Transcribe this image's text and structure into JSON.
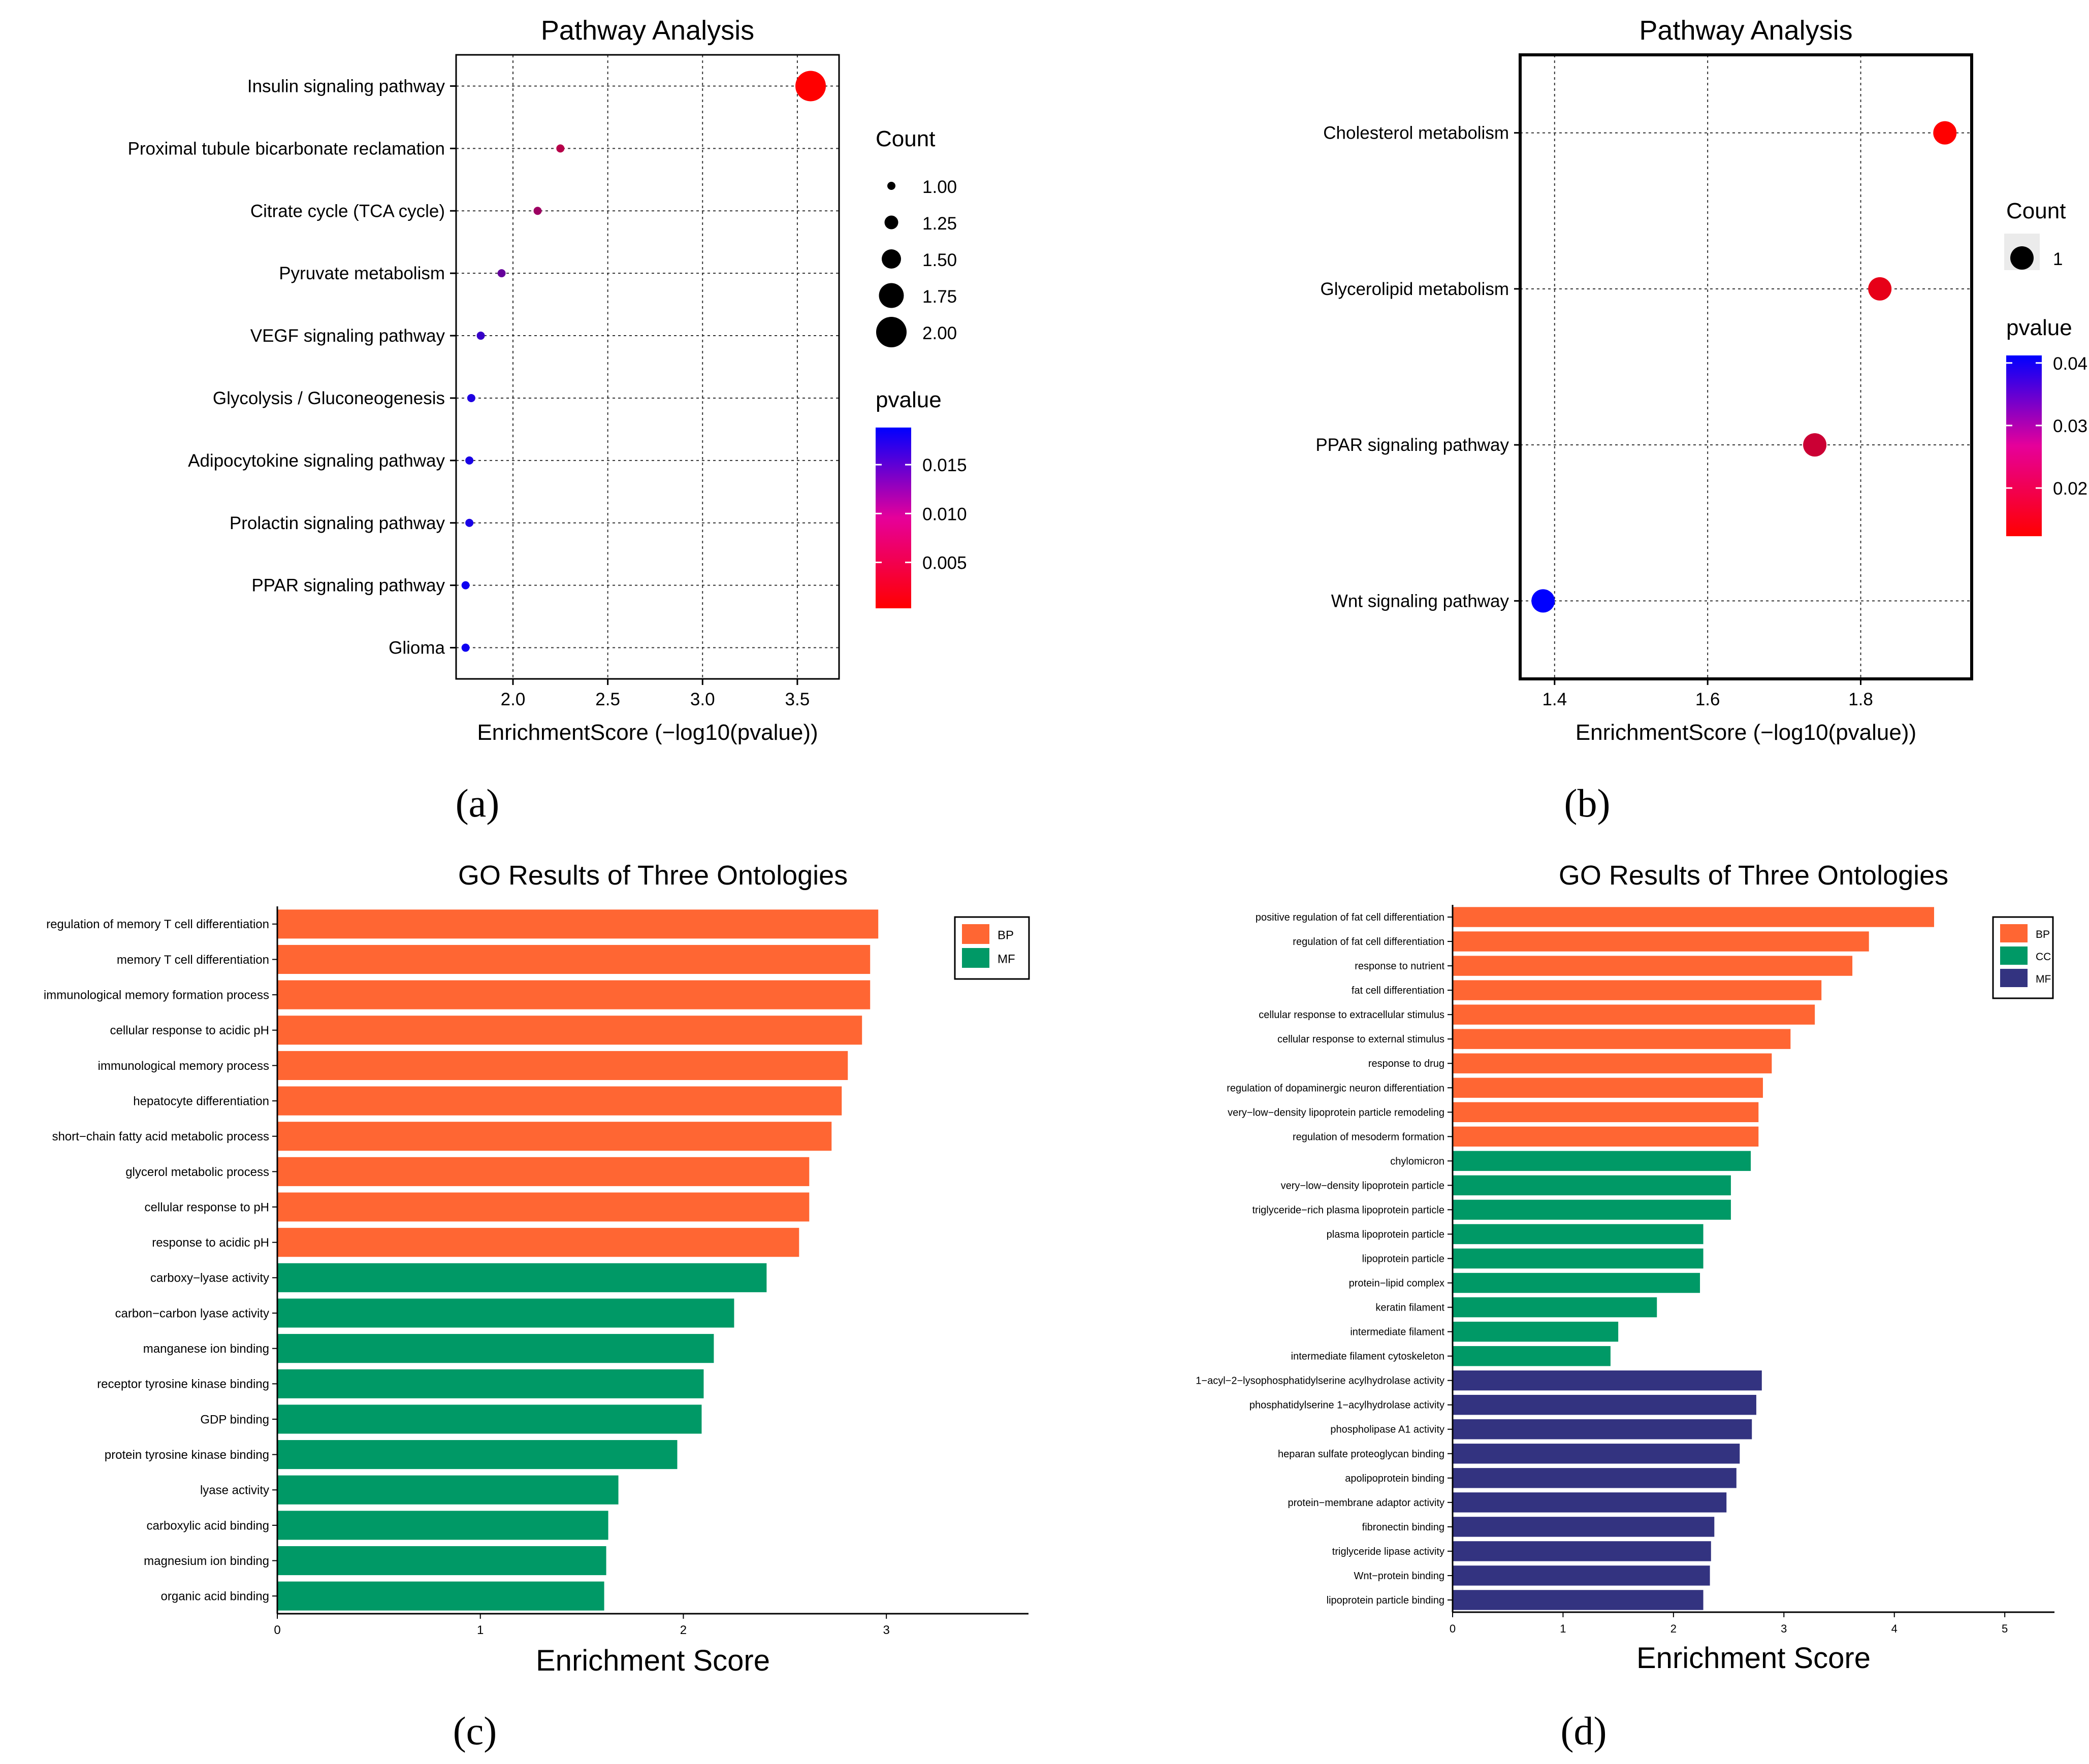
{
  "panel_labels": [
    "(a)",
    "(b)",
    "(c)",
    "(d)"
  ],
  "chart_data": [
    {
      "type": "scatter",
      "panel": "a",
      "title": "Pathway Analysis",
      "xlabel": "EnrichmentScore (−log10(pvalue))",
      "ylabel": "",
      "xlim": [
        1.7,
        3.72
      ],
      "xticks": [
        2.0,
        2.5,
        3.0,
        3.5
      ],
      "xtick_labels": [
        "2.0",
        "2.5",
        "3.0",
        "3.5"
      ],
      "grid": true,
      "categories": [
        "Insulin signaling pathway",
        "Proximal tubule bicarbonate reclamation",
        "Citrate cycle (TCA cycle)",
        "Pyruvate metabolism",
        "VEGF signaling pathway",
        "Glycolysis / Gluconeogenesis",
        "Adipocytokine signaling pathway",
        "Prolactin signaling pathway",
        "PPAR signaling pathway",
        "Glioma"
      ],
      "x": [
        3.57,
        2.25,
        2.13,
        1.94,
        1.83,
        1.78,
        1.77,
        1.77,
        1.75,
        1.75
      ],
      "count": [
        2,
        1,
        1,
        1,
        1,
        1,
        1,
        1,
        1,
        1
      ],
      "pvalue": [
        0.0003,
        0.0056,
        0.0074,
        0.0115,
        0.0148,
        0.0166,
        0.017,
        0.017,
        0.0178,
        0.0178
      ],
      "size_legend": {
        "title": "Count",
        "values": [
          1.0,
          1.25,
          1.5,
          1.75,
          2.0
        ],
        "labels": [
          "1.00",
          "1.25",
          "1.50",
          "1.75",
          "2.00"
        ]
      },
      "color_legend": {
        "title": "pvalue",
        "range": [
          0.0003,
          0.0188
        ],
        "ticks": [
          0.005,
          0.01,
          0.015
        ],
        "tick_labels": [
          "0.005",
          "0.010",
          "0.015"
        ],
        "low_color": "#ff0000",
        "high_color": "#0000ff"
      }
    },
    {
      "type": "scatter",
      "panel": "b",
      "title": "Pathway Analysis",
      "xlabel": "EnrichmentScore (−log10(pvalue))",
      "ylabel": "",
      "xlim": [
        1.355,
        1.945
      ],
      "xticks": [
        1.4,
        1.6,
        1.8
      ],
      "xtick_labels": [
        "1.4",
        "1.6",
        "1.8"
      ],
      "grid": true,
      "categories": [
        "Cholesterol metabolism",
        "Glycerolipid metabolism",
        "PPAR signaling pathway",
        "Wnt signaling pathway"
      ],
      "x": [
        1.91,
        1.825,
        1.74,
        1.385
      ],
      "count": [
        1,
        1,
        1,
        1
      ],
      "pvalue": [
        0.0123,
        0.015,
        0.0182,
        0.0412
      ],
      "size_legend": {
        "title": "Count",
        "values": [
          1
        ],
        "labels": [
          "1"
        ]
      },
      "color_legend": {
        "title": "pvalue",
        "range": [
          0.0123,
          0.0412
        ],
        "ticks": [
          0.02,
          0.03,
          0.04
        ],
        "tick_labels": [
          "0.02",
          "0.03",
          "0.04"
        ],
        "low_color": "#ff0000",
        "high_color": "#0000ff"
      }
    },
    {
      "type": "bar",
      "orientation": "horizontal",
      "panel": "c",
      "title": "GO Results of Three Ontologies",
      "xlabel": "Enrichment Score",
      "ylabel": "",
      "xlim": [
        0,
        3.7
      ],
      "xticks": [
        0,
        1,
        2,
        3
      ],
      "xtick_labels": [
        "0",
        "1",
        "2",
        "3"
      ],
      "categories": [
        "regulation of memory T cell differentiation",
        "memory T cell differentiation",
        "immunological memory formation process",
        "cellular response to acidic pH",
        "immunological memory process",
        "hepatocyte differentiation",
        "short−chain fatty acid metabolic process",
        "glycerol metabolic process",
        "cellular response to pH",
        "response to acidic pH",
        "carboxy−lyase activity",
        "carbon−carbon lyase activity",
        "manganese ion binding",
        "receptor tyrosine kinase binding",
        "GDP binding",
        "protein tyrosine kinase binding",
        "lyase activity",
        "carboxylic acid binding",
        "magnesium ion binding",
        "organic acid binding"
      ],
      "values": [
        2.96,
        2.92,
        2.92,
        2.88,
        2.81,
        2.78,
        2.73,
        2.62,
        2.62,
        2.57,
        2.41,
        2.25,
        2.15,
        2.1,
        2.09,
        1.97,
        1.68,
        1.63,
        1.62,
        1.61
      ],
      "group": [
        "BP",
        "BP",
        "BP",
        "BP",
        "BP",
        "BP",
        "BP",
        "BP",
        "BP",
        "BP",
        "MF",
        "MF",
        "MF",
        "MF",
        "MF",
        "MF",
        "MF",
        "MF",
        "MF",
        "MF"
      ],
      "legend": [
        {
          "name": "BP",
          "color": "#ff6633"
        },
        {
          "name": "MF",
          "color": "#009966"
        }
      ]
    },
    {
      "type": "bar",
      "orientation": "horizontal",
      "panel": "d",
      "title": "GO Results of Three Ontologies",
      "xlabel": "Enrichment Score",
      "ylabel": "",
      "xlim": [
        0,
        5.45
      ],
      "xticks": [
        0,
        1,
        2,
        3,
        4,
        5
      ],
      "xtick_labels": [
        "0",
        "1",
        "2",
        "3",
        "4",
        "5"
      ],
      "categories": [
        "positive regulation of fat cell differentiation",
        "regulation of fat cell differentiation",
        "response to nutrient",
        "fat cell differentiation",
        "cellular response to extracellular stimulus",
        "cellular response to external stimulus",
        "response to drug",
        "regulation of dopaminergic neuron differentiation",
        "very−low−density lipoprotein particle remodeling",
        "regulation of mesoderm formation",
        "chylomicron",
        "very−low−density lipoprotein particle",
        "triglyceride−rich plasma lipoprotein particle",
        "plasma lipoprotein particle",
        "lipoprotein particle",
        "protein−lipid complex",
        "keratin filament",
        "intermediate filament",
        "intermediate filament cytoskeleton",
        "1−acyl−2−lysophosphatidylserine acylhydrolase activity",
        "phosphatidylserine 1−acylhydrolase activity",
        "phospholipase A1 activity",
        "heparan sulfate proteoglycan binding",
        "apolipoprotein binding",
        "protein−membrane adaptor activity",
        "fibronectin binding",
        "triglyceride lipase activity",
        "Wnt−protein binding",
        "lipoprotein particle binding"
      ],
      "values": [
        4.36,
        3.77,
        3.62,
        3.34,
        3.28,
        3.06,
        2.89,
        2.81,
        2.77,
        2.77,
        2.7,
        2.52,
        2.52,
        2.27,
        2.27,
        2.24,
        1.85,
        1.5,
        1.43,
        2.8,
        2.75,
        2.71,
        2.6,
        2.57,
        2.48,
        2.37,
        2.34,
        2.33,
        2.27
      ],
      "group": [
        "BP",
        "BP",
        "BP",
        "BP",
        "BP",
        "BP",
        "BP",
        "BP",
        "BP",
        "BP",
        "CC",
        "CC",
        "CC",
        "CC",
        "CC",
        "CC",
        "CC",
        "CC",
        "CC",
        "MF",
        "MF",
        "MF",
        "MF",
        "MF",
        "MF",
        "MF",
        "MF",
        "MF",
        "MF"
      ],
      "legend": [
        {
          "name": "BP",
          "color": "#ff6633"
        },
        {
          "name": "CC",
          "color": "#009966"
        },
        {
          "name": "MF",
          "color": "#333380"
        }
      ]
    }
  ]
}
